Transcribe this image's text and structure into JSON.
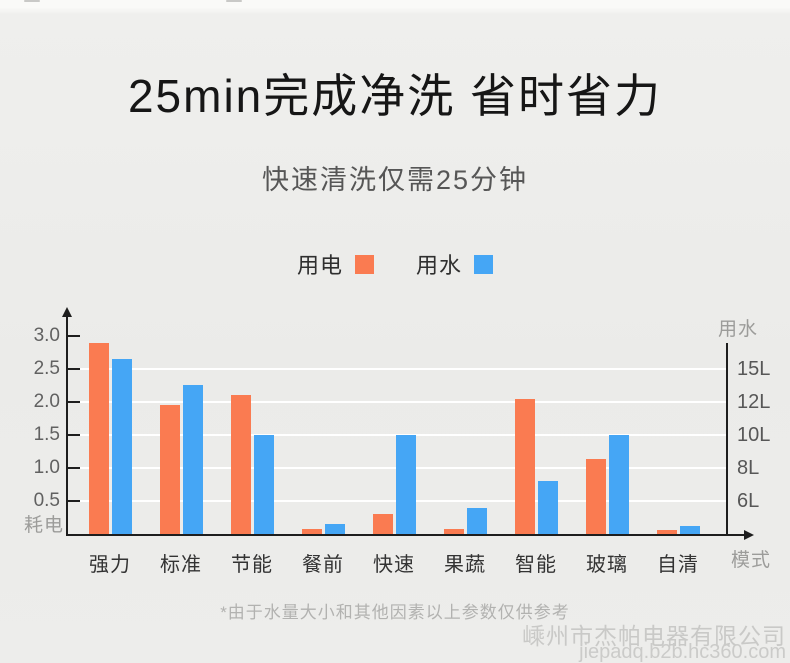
{
  "header": {
    "title": "25min完成净洗 省时省力",
    "subtitle": "快速清洗仅需25分钟"
  },
  "legend": {
    "items": [
      {
        "label": "用电",
        "color": "#FA7B51"
      },
      {
        "label": "用水",
        "color": "#45A6F5"
      }
    ]
  },
  "chart_data": {
    "type": "bar",
    "title": "25min完成净洗 省时省力",
    "categories": [
      "强力",
      "标准",
      "节能",
      "餐前",
      "快速",
      "果蔬",
      "智能",
      "玻璃",
      "自清"
    ],
    "series": [
      {
        "name": "用电",
        "color": "#FA7B51",
        "values": [
          2.9,
          1.95,
          2.1,
          0.08,
          0.3,
          0.08,
          2.05,
          1.13,
          0.06
        ]
      },
      {
        "name": "用水",
        "color": "#45A6F5",
        "values": [
          2.65,
          2.25,
          1.5,
          0.15,
          1.5,
          0.4,
          0.8,
          1.5,
          0.12
        ]
      }
    ],
    "left_axis": {
      "label": "耗电",
      "ticks": [
        0.5,
        1.0,
        1.5,
        2.0,
        2.5,
        3.0
      ],
      "range": [
        0,
        3.3
      ]
    },
    "right_axis": {
      "label": "用水",
      "ticks": [
        {
          "value": 0.5,
          "label": "6L"
        },
        {
          "value": 1.0,
          "label": "8L"
        },
        {
          "value": 1.5,
          "label": "10L"
        },
        {
          "value": 2.0,
          "label": "12L"
        },
        {
          "value": 2.5,
          "label": "15L"
        }
      ]
    },
    "x_axis": {
      "label": "模式"
    },
    "grid": true,
    "gridlines_at": [
      0.5,
      1.0,
      1.5,
      2.0,
      2.5
    ],
    "legend_position": "top"
  },
  "footer": {
    "note": "*由于水量大小和其他因素以上参数仅供参考",
    "watermark_company": "嵊州市杰帕电器有限公司",
    "watermark_url": "jiepadq.b2b.hc360.com"
  }
}
